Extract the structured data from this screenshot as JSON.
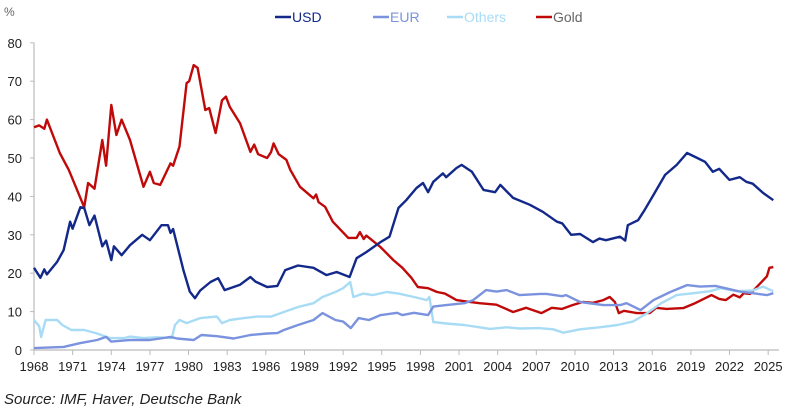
{
  "chart_data": {
    "type": "line",
    "ylabel": "%",
    "xlim": [
      1968,
      2026
    ],
    "ylim": [
      0,
      80
    ],
    "x_ticks": [
      1968,
      1971,
      1974,
      1977,
      1980,
      1983,
      1986,
      1989,
      1992,
      1995,
      1998,
      2001,
      2004,
      2007,
      2010,
      2013,
      2016,
      2019,
      2022,
      2025
    ],
    "y_ticks": [
      0,
      10,
      20,
      30,
      40,
      50,
      60,
      70,
      80
    ],
    "grid": false,
    "legend_position": "top-center",
    "series": [
      {
        "name": "USD",
        "color": "#13298a",
        "points": [
          [
            1968,
            21.4
          ],
          [
            1968.5,
            18.8
          ],
          [
            1968.8,
            21
          ],
          [
            1969,
            19.7
          ],
          [
            1969.8,
            23
          ],
          [
            1970.3,
            26
          ],
          [
            1970.8,
            33.4
          ],
          [
            1971,
            31.6
          ],
          [
            1971.6,
            37.2
          ],
          [
            1971.9,
            37
          ],
          [
            1972.3,
            32.5
          ],
          [
            1972.7,
            35
          ],
          [
            1973.3,
            27
          ],
          [
            1973.6,
            28.5
          ],
          [
            1974,
            23.4
          ],
          [
            1974.2,
            27
          ],
          [
            1974.8,
            24.7
          ],
          [
            1975.45,
            27.3
          ],
          [
            1976.4,
            30
          ],
          [
            1977,
            28.6
          ],
          [
            1977.9,
            32.5
          ],
          [
            1978.4,
            32.5
          ],
          [
            1978.6,
            30.5
          ],
          [
            1978.8,
            31.5
          ],
          [
            1979.6,
            20.8
          ],
          [
            1980.1,
            15.2
          ],
          [
            1980.5,
            13.5
          ],
          [
            1980.9,
            15.5
          ],
          [
            1981.7,
            17.7
          ],
          [
            1982.3,
            18.7
          ],
          [
            1982.8,
            15.6
          ],
          [
            1984,
            17
          ],
          [
            1984.8,
            19
          ],
          [
            1985.2,
            17.8
          ],
          [
            1986.1,
            16.4
          ],
          [
            1986.9,
            16.7
          ],
          [
            1987.5,
            20.8
          ],
          [
            1988.5,
            22
          ],
          [
            1989.7,
            21.4
          ],
          [
            1990.7,
            19.5
          ],
          [
            1991.5,
            20.3
          ],
          [
            1992.5,
            19
          ],
          [
            1993.05,
            23.9
          ],
          [
            1993.8,
            25.5
          ],
          [
            1994.9,
            28.1
          ],
          [
            1995.6,
            29.5
          ],
          [
            1996.3,
            37
          ],
          [
            1996.9,
            39
          ],
          [
            1997.7,
            42.2
          ],
          [
            1998.2,
            43.5
          ],
          [
            1998.6,
            41.1
          ],
          [
            1999,
            43.8
          ],
          [
            1999.75,
            46
          ],
          [
            2000,
            45
          ],
          [
            2000.8,
            47.4
          ],
          [
            2001.2,
            48.2
          ],
          [
            2002,
            46.4
          ],
          [
            2002.9,
            41.7
          ],
          [
            2003.8,
            41.1
          ],
          [
            2004.2,
            43
          ],
          [
            2005.2,
            39.6
          ],
          [
            2006.5,
            37.8
          ],
          [
            2007.5,
            36
          ],
          [
            2008.6,
            33.4
          ],
          [
            2009,
            33
          ],
          [
            2009.7,
            30
          ],
          [
            2010.4,
            30.2
          ],
          [
            2011.4,
            28.1
          ],
          [
            2011.9,
            29
          ],
          [
            2012.4,
            28.6
          ],
          [
            2013.5,
            29.5
          ],
          [
            2013.9,
            28.5
          ],
          [
            2014.1,
            32.5
          ],
          [
            2014.9,
            33.8
          ],
          [
            2015.4,
            36.4
          ],
          [
            2016.1,
            40.4
          ],
          [
            2017,
            45.6
          ],
          [
            2017.9,
            48.2
          ],
          [
            2018.7,
            51.3
          ],
          [
            2019.5,
            50
          ],
          [
            2020.1,
            49
          ],
          [
            2020.7,
            46.4
          ],
          [
            2021.2,
            47.2
          ],
          [
            2022,
            44.3
          ],
          [
            2022.8,
            45
          ],
          [
            2023.3,
            43.8
          ],
          [
            2023.8,
            43.3
          ],
          [
            2024.6,
            40.9
          ],
          [
            2025.4,
            39
          ]
        ]
      },
      {
        "name": "EUR",
        "color": "#7b93de",
        "points": [
          [
            1968,
            0.5
          ],
          [
            1970.3,
            0.8
          ],
          [
            1971.6,
            1.8
          ],
          [
            1972.9,
            2.6
          ],
          [
            1973.6,
            3.4
          ],
          [
            1974,
            2.2
          ],
          [
            1975.45,
            2.6
          ],
          [
            1977,
            2.6
          ],
          [
            1978.6,
            3.4
          ],
          [
            1979.1,
            3
          ],
          [
            1980.4,
            2.6
          ],
          [
            1981,
            3.9
          ],
          [
            1982.2,
            3.6
          ],
          [
            1983.5,
            3
          ],
          [
            1984.8,
            3.9
          ],
          [
            1986.1,
            4.3
          ],
          [
            1986.9,
            4.4
          ],
          [
            1987.4,
            5.2
          ],
          [
            1988.5,
            6.5
          ],
          [
            1989.7,
            7.8
          ],
          [
            1990.4,
            9.6
          ],
          [
            1991.4,
            7.8
          ],
          [
            1992,
            7.4
          ],
          [
            1992.6,
            5.7
          ],
          [
            1993.2,
            8.3
          ],
          [
            1994,
            7.8
          ],
          [
            1994.9,
            9.1
          ],
          [
            1996.2,
            9.7
          ],
          [
            1996.6,
            9.1
          ],
          [
            1997.5,
            9.7
          ],
          [
            1998.6,
            9.1
          ],
          [
            1999,
            11.3
          ],
          [
            2000,
            11.7
          ],
          [
            2001.4,
            12.2
          ],
          [
            2002.1,
            13
          ],
          [
            2003.1,
            15.6
          ],
          [
            2003.9,
            15.2
          ],
          [
            2004.7,
            15.6
          ],
          [
            2005.7,
            14.3
          ],
          [
            2007.3,
            14.6
          ],
          [
            2007.8,
            14.6
          ],
          [
            2009,
            14
          ],
          [
            2009.3,
            14.3
          ],
          [
            2010.4,
            12.5
          ],
          [
            2012.2,
            11.7
          ],
          [
            2013.5,
            11.7
          ],
          [
            2014,
            12.2
          ],
          [
            2015.1,
            10.4
          ],
          [
            2016.1,
            13
          ],
          [
            2017.4,
            15.1
          ],
          [
            2018.7,
            16.9
          ],
          [
            2019.7,
            16.5
          ],
          [
            2020.9,
            16.7
          ],
          [
            2021.8,
            16
          ],
          [
            2022.8,
            15.2
          ],
          [
            2023.8,
            14.8
          ],
          [
            2024.9,
            14.3
          ],
          [
            2025.4,
            14.8
          ]
        ]
      },
      {
        "name": "Others",
        "color": "#a8dcf5",
        "points": [
          [
            1968,
            7.8
          ],
          [
            1968.4,
            6.2
          ],
          [
            1968.55,
            3.4
          ],
          [
            1968.9,
            7.8
          ],
          [
            1969.8,
            7.8
          ],
          [
            1970.2,
            6.5
          ],
          [
            1970.9,
            5.2
          ],
          [
            1971.9,
            5.2
          ],
          [
            1972.9,
            4.3
          ],
          [
            1973.9,
            3.1
          ],
          [
            1975,
            3.1
          ],
          [
            1975.45,
            3.5
          ],
          [
            1976.5,
            3.1
          ],
          [
            1977.5,
            3.3
          ],
          [
            1978.7,
            3.1
          ],
          [
            1978.95,
            6.5
          ],
          [
            1979.3,
            7.8
          ],
          [
            1979.85,
            7
          ],
          [
            1980.9,
            8.3
          ],
          [
            1982.2,
            8.7
          ],
          [
            1982.6,
            7
          ],
          [
            1983.2,
            7.8
          ],
          [
            1984.3,
            8.3
          ],
          [
            1985.3,
            8.7
          ],
          [
            1986.4,
            8.7
          ],
          [
            1987.4,
            9.9
          ],
          [
            1988.5,
            11.2
          ],
          [
            1989.7,
            12.2
          ],
          [
            1990.4,
            13.8
          ],
          [
            1991.4,
            15.1
          ],
          [
            1992,
            16.1
          ],
          [
            1992.55,
            17.7
          ],
          [
            1992.8,
            13.8
          ],
          [
            1993.55,
            14.7
          ],
          [
            1994.3,
            14.3
          ],
          [
            1995.4,
            15.1
          ],
          [
            1996.3,
            14.7
          ],
          [
            1997.5,
            13.8
          ],
          [
            1998.5,
            13
          ],
          [
            1998.7,
            13.8
          ],
          [
            1999,
            7.3
          ],
          [
            2000,
            6.9
          ],
          [
            2001.4,
            6.5
          ],
          [
            2002.6,
            5.9
          ],
          [
            2003.4,
            5.5
          ],
          [
            2004.7,
            5.9
          ],
          [
            2005.7,
            5.6
          ],
          [
            2007.2,
            5.7
          ],
          [
            2008.3,
            5.4
          ],
          [
            2009.1,
            4.5
          ],
          [
            2010.4,
            5.4
          ],
          [
            2011.9,
            5.9
          ],
          [
            2013.3,
            6.5
          ],
          [
            2014.5,
            7.4
          ],
          [
            2015.6,
            9.6
          ],
          [
            2016.7,
            12.2
          ],
          [
            2017.9,
            14.3
          ],
          [
            2019.2,
            14.8
          ],
          [
            2020.5,
            15.3
          ],
          [
            2021.3,
            16.1
          ],
          [
            2022.6,
            15.3
          ],
          [
            2023.8,
            15.5
          ],
          [
            2024.6,
            16.5
          ],
          [
            2025.4,
            15.3
          ]
        ]
      },
      {
        "name": "Gold",
        "color": "#c00a0a",
        "points": [
          [
            1968,
            58
          ],
          [
            1968.4,
            58.5
          ],
          [
            1968.8,
            57.6
          ],
          [
            1969,
            60
          ],
          [
            1970,
            51.3
          ],
          [
            1970.7,
            46.9
          ],
          [
            1971.9,
            37.2
          ],
          [
            1972.2,
            43.5
          ],
          [
            1972.7,
            42
          ],
          [
            1973.3,
            54.7
          ],
          [
            1973.6,
            48
          ],
          [
            1974,
            63.8
          ],
          [
            1974.4,
            56
          ],
          [
            1974.8,
            60
          ],
          [
            1975.45,
            54.7
          ],
          [
            1976.5,
            42.5
          ],
          [
            1977,
            46.4
          ],
          [
            1977.3,
            43.5
          ],
          [
            1977.8,
            43
          ],
          [
            1978.6,
            48.6
          ],
          [
            1978.8,
            48
          ],
          [
            1979.3,
            53
          ],
          [
            1979.85,
            69.5
          ],
          [
            1980.05,
            70
          ],
          [
            1980.4,
            74.2
          ],
          [
            1980.7,
            73.5
          ],
          [
            1981.3,
            62.5
          ],
          [
            1981.6,
            63
          ],
          [
            1982.1,
            56.5
          ],
          [
            1982.6,
            65
          ],
          [
            1982.9,
            66
          ],
          [
            1983.2,
            63.3
          ],
          [
            1984,
            59
          ],
          [
            1984.8,
            51.6
          ],
          [
            1985.1,
            53.5
          ],
          [
            1985.4,
            51
          ],
          [
            1986.1,
            50
          ],
          [
            1986.4,
            51.5
          ],
          [
            1986.6,
            53.8
          ],
          [
            1987,
            51
          ],
          [
            1987.6,
            49.5
          ],
          [
            1987.9,
            46.9
          ],
          [
            1988.65,
            42.5
          ],
          [
            1989.7,
            39.5
          ],
          [
            1989.9,
            40.5
          ],
          [
            1990.1,
            38.5
          ],
          [
            1990.6,
            37.3
          ],
          [
            1991.2,
            33.4
          ],
          [
            1992.4,
            29.2
          ],
          [
            1993.05,
            29.2
          ],
          [
            1993.3,
            30.7
          ],
          [
            1993.6,
            28.9
          ],
          [
            1993.8,
            29.8
          ],
          [
            1994.9,
            26.8
          ],
          [
            1995.9,
            23.4
          ],
          [
            1996.6,
            21.4
          ],
          [
            1997.3,
            18.8
          ],
          [
            1997.8,
            16.4
          ],
          [
            1998.6,
            16.1
          ],
          [
            1999.3,
            15.1
          ],
          [
            1999.9,
            14.7
          ],
          [
            2000.8,
            13
          ],
          [
            2001.6,
            12.6
          ],
          [
            2002.6,
            12.2
          ],
          [
            2003.9,
            11.8
          ],
          [
            2005.2,
            9.9
          ],
          [
            2006.2,
            11
          ],
          [
            2007.4,
            9.6
          ],
          [
            2008.2,
            11
          ],
          [
            2009,
            10.7
          ],
          [
            2009.8,
            11.7
          ],
          [
            2010.6,
            12.5
          ],
          [
            2011.4,
            12.3
          ],
          [
            2012.2,
            13
          ],
          [
            2012.7,
            13.8
          ],
          [
            2013.1,
            12.5
          ],
          [
            2013.4,
            9.6
          ],
          [
            2013.8,
            10.2
          ],
          [
            2014.8,
            9.6
          ],
          [
            2015.8,
            9.6
          ],
          [
            2016.3,
            11
          ],
          [
            2017.1,
            10.7
          ],
          [
            2018.4,
            10.9
          ],
          [
            2019.2,
            12
          ],
          [
            2020.6,
            14.3
          ],
          [
            2021.2,
            13.3
          ],
          [
            2021.7,
            13
          ],
          [
            2022.3,
            14.4
          ],
          [
            2022.8,
            13.7
          ],
          [
            2023.1,
            14.8
          ],
          [
            2023.6,
            14.6
          ],
          [
            2024.4,
            17.4
          ],
          [
            2024.9,
            19.2
          ],
          [
            2025.1,
            21.4
          ],
          [
            2025.4,
            21.6
          ]
        ]
      }
    ]
  },
  "source": "Source: IMF, Haver, Deutsche Bank"
}
